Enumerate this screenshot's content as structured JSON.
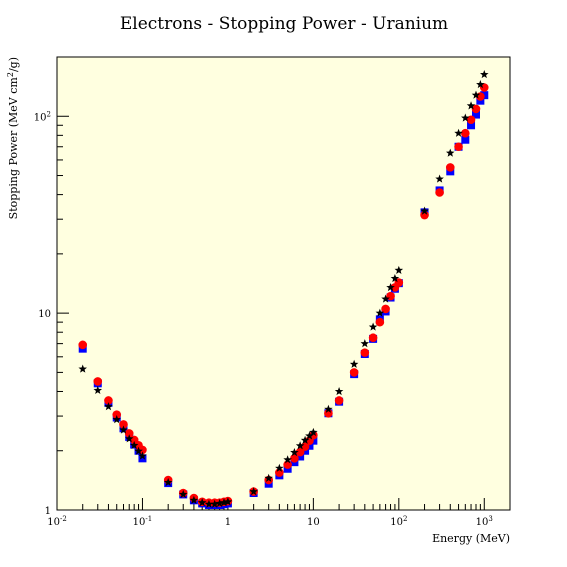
{
  "chart_data": {
    "type": "scatter",
    "title": "Electrons - Stopping Power - Uranium",
    "xlabel": "Energy (MeV)",
    "ylabel_main": "Stopping Power (MeV cm",
    "ylabel_sup": "2",
    "ylabel_end": "/g)",
    "xscale": "log",
    "yscale": "log",
    "xlim": [
      0.01,
      2000
    ],
    "ylim": [
      1,
      200
    ],
    "grid": false,
    "background": "#ffffe0",
    "x_ticks": [
      {
        "value": 0.01,
        "base": "10",
        "exp": "-2"
      },
      {
        "value": 0.1,
        "base": "10",
        "exp": "-1"
      },
      {
        "value": 1,
        "base": "1",
        "exp": ""
      },
      {
        "value": 10,
        "base": "10",
        "exp": ""
      },
      {
        "value": 100,
        "base": "10",
        "exp": "2"
      },
      {
        "value": 1000,
        "base": "10",
        "exp": "3"
      }
    ],
    "y_ticks": [
      {
        "value": 1,
        "base": "1",
        "exp": ""
      },
      {
        "value": 10,
        "base": "10",
        "exp": ""
      },
      {
        "value": 100,
        "base": "10",
        "exp": "2"
      }
    ],
    "series": [
      {
        "marker": "square",
        "color": "#0000ff",
        "points": [
          [
            0.02,
            6.6
          ],
          [
            0.03,
            4.4
          ],
          [
            0.04,
            3.5
          ],
          [
            0.05,
            2.95
          ],
          [
            0.06,
            2.6
          ],
          [
            0.07,
            2.35
          ],
          [
            0.08,
            2.15
          ],
          [
            0.09,
            2.0
          ],
          [
            0.1,
            1.83
          ],
          [
            0.2,
            1.37
          ],
          [
            0.3,
            1.2
          ],
          [
            0.4,
            1.12
          ],
          [
            0.5,
            1.08
          ],
          [
            0.6,
            1.06
          ],
          [
            0.7,
            1.06
          ],
          [
            0.8,
            1.06
          ],
          [
            0.9,
            1.07
          ],
          [
            1,
            1.08
          ],
          [
            2,
            1.22
          ],
          [
            3,
            1.36
          ],
          [
            4,
            1.5
          ],
          [
            5,
            1.62
          ],
          [
            6,
            1.75
          ],
          [
            7,
            1.87
          ],
          [
            8,
            2.0
          ],
          [
            9,
            2.12
          ],
          [
            10,
            2.25
          ],
          [
            15,
            3.1
          ],
          [
            20,
            3.55
          ],
          [
            30,
            4.9
          ],
          [
            40,
            6.2
          ],
          [
            50,
            7.4
          ],
          [
            60,
            9.3
          ],
          [
            70,
            10.2
          ],
          [
            80,
            12.0
          ],
          [
            90,
            13.3
          ],
          [
            100,
            14.2
          ],
          [
            200,
            32.5
          ],
          [
            300,
            42.0
          ],
          [
            400,
            52.5
          ],
          [
            500,
            70.0
          ],
          [
            600,
            76.0
          ],
          [
            700,
            90.0
          ],
          [
            800,
            102.0
          ],
          [
            900,
            120.0
          ],
          [
            1000,
            128.0
          ]
        ]
      },
      {
        "marker": "circle",
        "color": "#ff0000",
        "points": [
          [
            0.02,
            6.9
          ],
          [
            0.03,
            4.5
          ],
          [
            0.04,
            3.6
          ],
          [
            0.05,
            3.05
          ],
          [
            0.06,
            2.72
          ],
          [
            0.07,
            2.45
          ],
          [
            0.08,
            2.27
          ],
          [
            0.09,
            2.13
          ],
          [
            0.1,
            2.02
          ],
          [
            0.2,
            1.42
          ],
          [
            0.3,
            1.22
          ],
          [
            0.4,
            1.15
          ],
          [
            0.5,
            1.1
          ],
          [
            0.6,
            1.09
          ],
          [
            0.7,
            1.09
          ],
          [
            0.8,
            1.09
          ],
          [
            0.9,
            1.1
          ],
          [
            1,
            1.11
          ],
          [
            2,
            1.24
          ],
          [
            3,
            1.42
          ],
          [
            4,
            1.55
          ],
          [
            5,
            1.7
          ],
          [
            6,
            1.83
          ],
          [
            7,
            1.97
          ],
          [
            8,
            2.1
          ],
          [
            9,
            2.25
          ],
          [
            10,
            2.4
          ],
          [
            15,
            3.1
          ],
          [
            20,
            3.6
          ],
          [
            30,
            5.0
          ],
          [
            40,
            6.3
          ],
          [
            50,
            7.5
          ],
          [
            60,
            9.0
          ],
          [
            70,
            10.5
          ],
          [
            80,
            12.2
          ],
          [
            90,
            13.5
          ],
          [
            100,
            14.3
          ],
          [
            200,
            31.5
          ],
          [
            300,
            41.0
          ],
          [
            400,
            55.0
          ],
          [
            500,
            70.0
          ],
          [
            600,
            82.0
          ],
          [
            700,
            96.0
          ],
          [
            800,
            109.0
          ],
          [
            900,
            126.0
          ],
          [
            1000,
            140.0
          ]
        ]
      },
      {
        "marker": "star",
        "color": "#000000",
        "points": [
          [
            0.02,
            5.2
          ],
          [
            0.03,
            4.05
          ],
          [
            0.04,
            3.35
          ],
          [
            0.05,
            2.88
          ],
          [
            0.06,
            2.55
          ],
          [
            0.07,
            2.3
          ],
          [
            0.08,
            2.13
          ],
          [
            0.09,
            1.99
          ],
          [
            0.1,
            1.88
          ],
          [
            0.2,
            1.38
          ],
          [
            0.3,
            1.2
          ],
          [
            0.4,
            1.12
          ],
          [
            0.5,
            1.09
          ],
          [
            0.6,
            1.07
          ],
          [
            0.7,
            1.07
          ],
          [
            0.8,
            1.08
          ],
          [
            0.9,
            1.09
          ],
          [
            1,
            1.1
          ],
          [
            2,
            1.24
          ],
          [
            3,
            1.45
          ],
          [
            4,
            1.63
          ],
          [
            5,
            1.8
          ],
          [
            6,
            1.96
          ],
          [
            7,
            2.12
          ],
          [
            8,
            2.26
          ],
          [
            9,
            2.38
          ],
          [
            10,
            2.48
          ],
          [
            15,
            3.25
          ],
          [
            20,
            4.0
          ],
          [
            30,
            5.5
          ],
          [
            40,
            7.0
          ],
          [
            50,
            8.5
          ],
          [
            60,
            10.0
          ],
          [
            70,
            11.8
          ],
          [
            80,
            13.5
          ],
          [
            90,
            15.0
          ],
          [
            100,
            16.5
          ],
          [
            200,
            33.0
          ],
          [
            300,
            48.0
          ],
          [
            400,
            65.0
          ],
          [
            500,
            82.0
          ],
          [
            600,
            98.0
          ],
          [
            700,
            113.0
          ],
          [
            800,
            128.0
          ],
          [
            900,
            145.0
          ],
          [
            1000,
            163.0
          ]
        ]
      }
    ]
  }
}
